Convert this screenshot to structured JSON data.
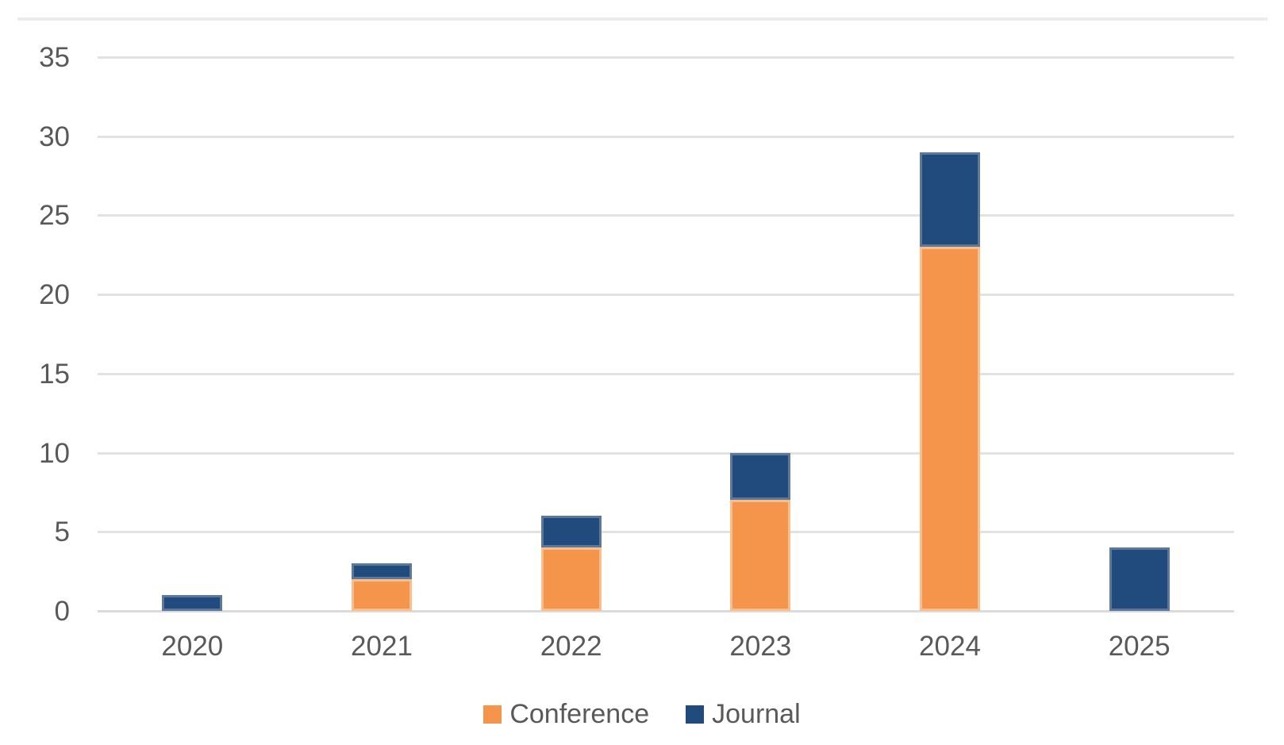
{
  "chart_data": {
    "type": "bar",
    "stacked": true,
    "title": "",
    "xlabel": "",
    "ylabel": "",
    "categories": [
      "2020",
      "2021",
      "2022",
      "2023",
      "2024",
      "2025"
    ],
    "series": [
      {
        "name": "Conference",
        "color": "#F5954C",
        "border": "#F8BE8E",
        "values": [
          0,
          2,
          4,
          7,
          23,
          0
        ]
      },
      {
        "name": "Journal",
        "color": "#214B7C",
        "border": "#5D7899",
        "values": [
          1,
          1,
          2,
          3,
          6,
          4
        ]
      }
    ],
    "ylim": [
      0,
      35
    ],
    "yticks": [
      0,
      5,
      10,
      15,
      20,
      25,
      30,
      35
    ],
    "grid": true,
    "legend_position": "bottom"
  },
  "colors": {
    "background": "#FFFFFF",
    "gridline": "#E2E2E2",
    "zero_line": "#DBDBDB",
    "chart_border": "#EBEBEB",
    "label_text": "#595959"
  }
}
